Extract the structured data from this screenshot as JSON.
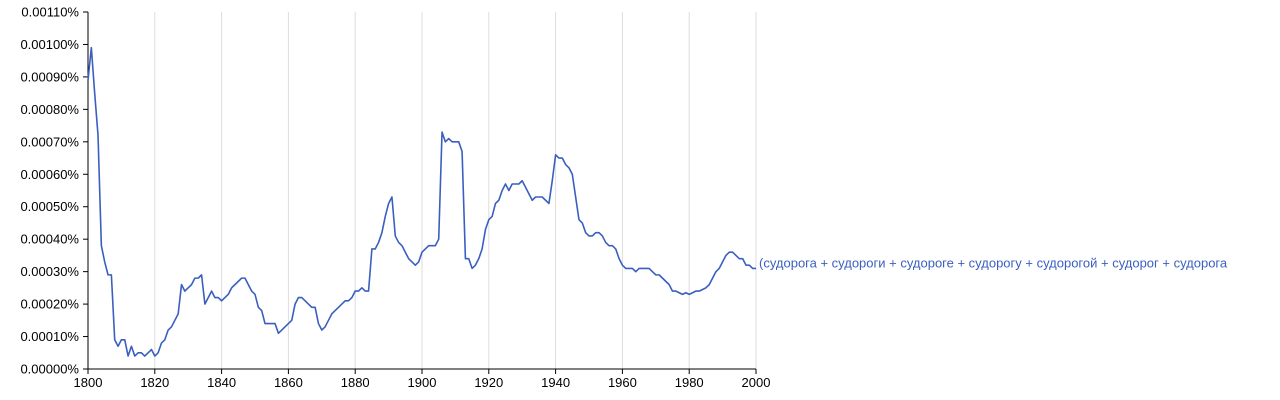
{
  "chart_data": {
    "type": "line",
    "title": "",
    "xlabel": "",
    "ylabel": "",
    "xlim": [
      1800,
      2000
    ],
    "ylim": [
      0,
      0.0011
    ],
    "x_ticks": [
      1800,
      1820,
      1840,
      1860,
      1880,
      1900,
      1920,
      1940,
      1960,
      1980,
      2000
    ],
    "x_tick_labels": [
      "1800",
      "1820",
      "1840",
      "1860",
      "1880",
      "1900",
      "1920",
      "1940",
      "1960",
      "1980",
      "2000"
    ],
    "y_ticks": [
      0,
      0.0001,
      0.0002,
      0.0003,
      0.0004,
      0.0005,
      0.0006,
      0.0007,
      0.0008,
      0.0009,
      0.001,
      0.0011
    ],
    "y_tick_labels": [
      "0.00000%",
      "0.00010%",
      "0.00020%",
      "0.00030%",
      "0.00040%",
      "0.00050%",
      "0.00060%",
      "0.00070%",
      "0.00080%",
      "0.00090%",
      "0.00100%",
      "0.00110%"
    ],
    "grid": {
      "vertical": true,
      "horizontal": false
    },
    "series_color": "#3b5fc0",
    "series": [
      {
        "name": "(судорога + судороги + судороге + судорогу + судорогой + судорог + судорога",
        "x": [
          1800,
          1801,
          1802,
          1803,
          1804,
          1805,
          1806,
          1807,
          1808,
          1809,
          1810,
          1811,
          1812,
          1813,
          1814,
          1815,
          1816,
          1817,
          1818,
          1819,
          1820,
          1821,
          1822,
          1823,
          1824,
          1825,
          1826,
          1827,
          1828,
          1829,
          1830,
          1831,
          1832,
          1833,
          1834,
          1835,
          1836,
          1837,
          1838,
          1839,
          1840,
          1841,
          1842,
          1843,
          1844,
          1845,
          1846,
          1847,
          1848,
          1849,
          1850,
          1851,
          1852,
          1853,
          1854,
          1855,
          1856,
          1857,
          1858,
          1859,
          1860,
          1861,
          1862,
          1863,
          1864,
          1865,
          1866,
          1867,
          1868,
          1869,
          1870,
          1871,
          1872,
          1873,
          1874,
          1875,
          1876,
          1877,
          1878,
          1879,
          1880,
          1881,
          1882,
          1883,
          1884,
          1885,
          1886,
          1887,
          1888,
          1889,
          1890,
          1891,
          1892,
          1893,
          1894,
          1895,
          1896,
          1897,
          1898,
          1899,
          1900,
          1901,
          1902,
          1903,
          1904,
          1905,
          1906,
          1907,
          1908,
          1909,
          1910,
          1911,
          1912,
          1913,
          1914,
          1915,
          1916,
          1917,
          1918,
          1919,
          1920,
          1921,
          1922,
          1923,
          1924,
          1925,
          1926,
          1927,
          1928,
          1929,
          1930,
          1931,
          1932,
          1933,
          1934,
          1935,
          1936,
          1937,
          1938,
          1939,
          1940,
          1941,
          1942,
          1943,
          1944,
          1945,
          1946,
          1947,
          1948,
          1949,
          1950,
          1951,
          1952,
          1953,
          1954,
          1955,
          1956,
          1957,
          1958,
          1959,
          1960,
          1961,
          1962,
          1963,
          1964,
          1965,
          1966,
          1967,
          1968,
          1969,
          1970,
          1971,
          1972,
          1973,
          1974,
          1975,
          1976,
          1977,
          1978,
          1979,
          1980,
          1981,
          1982,
          1983,
          1984,
          1985,
          1986,
          1987,
          1988,
          1989,
          1990,
          1991,
          1992,
          1993,
          1994,
          1995,
          1996,
          1997,
          1998,
          1999,
          2000
        ],
        "values": [
          0.00089,
          0.00099,
          0.00085,
          0.00072,
          0.00038,
          0.00033,
          0.00029,
          0.00029,
          9e-05,
          7e-05,
          9e-05,
          9e-05,
          4e-05,
          7e-05,
          4e-05,
          5e-05,
          5e-05,
          4e-05,
          5e-05,
          6e-05,
          4e-05,
          5e-05,
          8e-05,
          9e-05,
          0.00012,
          0.00013,
          0.00015,
          0.00017,
          0.00026,
          0.00024,
          0.00025,
          0.00026,
          0.00028,
          0.00028,
          0.00029,
          0.0002,
          0.00022,
          0.00024,
          0.00022,
          0.00022,
          0.00021,
          0.00022,
          0.00023,
          0.00025,
          0.00026,
          0.00027,
          0.00028,
          0.00028,
          0.00026,
          0.00024,
          0.00023,
          0.00019,
          0.00018,
          0.00014,
          0.00014,
          0.00014,
          0.00014,
          0.00011,
          0.00012,
          0.00013,
          0.00014,
          0.00015,
          0.0002,
          0.00022,
          0.00022,
          0.00021,
          0.0002,
          0.00019,
          0.00019,
          0.00014,
          0.00012,
          0.00013,
          0.00015,
          0.00017,
          0.00018,
          0.00019,
          0.0002,
          0.00021,
          0.00021,
          0.00022,
          0.00024,
          0.00024,
          0.00025,
          0.00024,
          0.00024,
          0.00037,
          0.00037,
          0.00039,
          0.00042,
          0.00047,
          0.00051,
          0.00053,
          0.00041,
          0.00039,
          0.00038,
          0.00036,
          0.00034,
          0.00033,
          0.00032,
          0.00033,
          0.00036,
          0.00037,
          0.00038,
          0.00038,
          0.00038,
          0.0004,
          0.00073,
          0.0007,
          0.00071,
          0.0007,
          0.0007,
          0.0007,
          0.00067,
          0.00034,
          0.00034,
          0.00031,
          0.00032,
          0.00034,
          0.00037,
          0.00043,
          0.00046,
          0.00047,
          0.00051,
          0.00052,
          0.00055,
          0.00057,
          0.00055,
          0.00057,
          0.00057,
          0.00057,
          0.00058,
          0.00056,
          0.00054,
          0.00052,
          0.00053,
          0.00053,
          0.00053,
          0.00052,
          0.00051,
          0.00058,
          0.00066,
          0.00065,
          0.00065,
          0.00063,
          0.00062,
          0.0006,
          0.00053,
          0.00046,
          0.00045,
          0.00042,
          0.00041,
          0.00041,
          0.00042,
          0.00042,
          0.00041,
          0.00039,
          0.00038,
          0.00038,
          0.00037,
          0.00034,
          0.00032,
          0.00031,
          0.00031,
          0.00031,
          0.0003,
          0.00031,
          0.00031,
          0.00031,
          0.00031,
          0.0003,
          0.00029,
          0.00029,
          0.00028,
          0.00027,
          0.00026,
          0.00024,
          0.00024,
          0.000235,
          0.00023,
          0.000235,
          0.00023,
          0.000235,
          0.00024,
          0.00024,
          0.000245,
          0.00025,
          0.00026,
          0.00028,
          0.0003,
          0.00031,
          0.00033,
          0.00035,
          0.00036,
          0.00036,
          0.00035,
          0.00034,
          0.00034,
          0.00032,
          0.00032,
          0.00031,
          0.00031
        ]
      }
    ]
  }
}
